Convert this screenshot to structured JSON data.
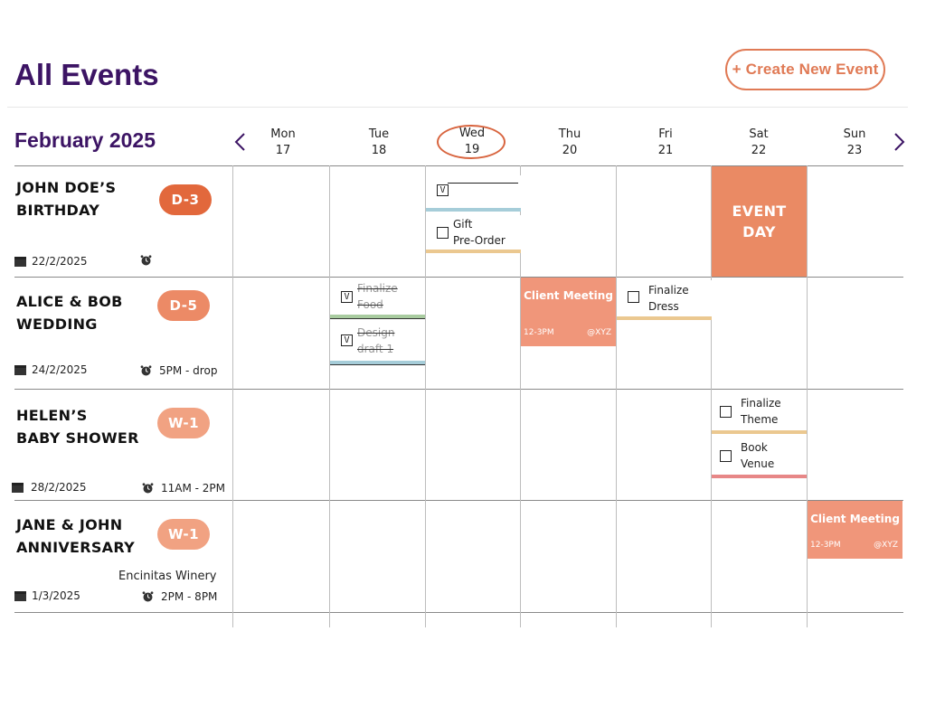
{
  "header": {
    "title": "All Events",
    "create_button": "+ Create New Event"
  },
  "calendar": {
    "month": "February 2025",
    "today_index": 2,
    "days": [
      {
        "name": "Mon",
        "num": "17"
      },
      {
        "name": "Tue",
        "num": "18"
      },
      {
        "name": "Wed",
        "num": "19"
      },
      {
        "name": "Thu",
        "num": "20"
      },
      {
        "name": "Fri",
        "num": "21"
      },
      {
        "name": "Sat",
        "num": "22"
      },
      {
        "name": "Sun",
        "num": "23"
      }
    ]
  },
  "events": [
    {
      "name": "JOHN DOE’S\nBIRTHDAY",
      "badge": "D-3",
      "badge_color": "#e2683c",
      "date": "22/2/2025",
      "time": ""
    },
    {
      "name": "ALICE & BOB\nWEDDING",
      "badge": "D-5",
      "badge_color": "#ec8a66",
      "date": "24/2/2025",
      "time": "5PM - drop"
    },
    {
      "name": "HELEN’S\nBABY SHOWER",
      "badge": "W-1",
      "badge_color": "#f1a282",
      "date": "28/2/2025",
      "time": "11AM - 2PM"
    },
    {
      "name": "JANE & JOHN\nANNIVERSARY",
      "badge": "W-1",
      "badge_color": "#f1a282",
      "date": "1/3/2025",
      "time": "2PM - 8PM",
      "location": "Encinitas Winery"
    }
  ],
  "tasks": {
    "wed_row1_a": {
      "text": "",
      "checked": true,
      "mark": "V",
      "bar_color": "#a6cdd9"
    },
    "wed_row1_b": {
      "text": "Gift\nPre-Order",
      "checked": false,
      "bar_color": "#ebc890"
    },
    "tue_row2_a": {
      "text": "Finalize\nFood",
      "checked": true,
      "mark": "V",
      "bar_color": "#a9cca0"
    },
    "tue_row2_b": {
      "text": "Design\ndraft 1",
      "checked": true,
      "mark": "V",
      "bar_color": "#a6cdd9"
    },
    "fri_row2": {
      "text": "Finalize\nDress",
      "checked": false,
      "bar_color": "#ebc890"
    },
    "sat_row3_a": {
      "text": "Finalize\nTheme",
      "checked": false,
      "bar_color": "#ebc890"
    },
    "sat_row3_b": {
      "text": "Book\nVenue",
      "checked": false,
      "bar_color": "#e78787"
    }
  },
  "meetings": {
    "thu_row2": {
      "title": "Client Meeting",
      "time": "12-3PM",
      "location": "@XYZ"
    },
    "sun_row4": {
      "title": "Client Meeting",
      "time": "12-3PM",
      "location": "@XYZ"
    }
  },
  "event_day": {
    "label": "EVENT\nDAY",
    "color": "#ea8a64"
  },
  "colors": {
    "title": "#3c1464",
    "accent": "#e07a55"
  }
}
